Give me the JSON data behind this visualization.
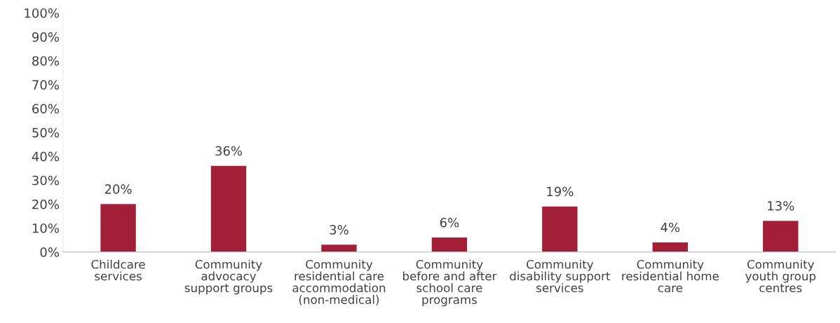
{
  "chart_data": {
    "type": "bar",
    "categories": [
      "Childcare\nservices",
      "Community\nadvocacy\nsupport groups",
      "Community\nresidential care\naccommodation\n(non-medical)",
      "Community\nbefore and after\nschool care\nprograms",
      "Community\ndisability support\nservices",
      "Community\nresidential home\ncare",
      "Community\nyouth group\ncentres"
    ],
    "values": [
      20,
      36,
      3,
      6,
      19,
      4,
      13
    ],
    "value_labels": [
      "20%",
      "36%",
      "3%",
      "6%",
      "19%",
      "4%",
      "13%"
    ],
    "color": "#a31f37",
    "ylim": [
      0,
      100
    ],
    "yticks": [
      {
        "value": 0,
        "label": "0%"
      },
      {
        "value": 10,
        "label": "10%"
      },
      {
        "value": 20,
        "label": "20%"
      },
      {
        "value": 30,
        "label": "30%"
      },
      {
        "value": 40,
        "label": "40%"
      },
      {
        "value": 50,
        "label": "50%"
      },
      {
        "value": 60,
        "label": "60%"
      },
      {
        "value": 70,
        "label": "70%"
      },
      {
        "value": 80,
        "label": "80%"
      },
      {
        "value": 90,
        "label": "90%"
      },
      {
        "value": 100,
        "label": "100%"
      }
    ],
    "grid": false,
    "legend": false
  }
}
